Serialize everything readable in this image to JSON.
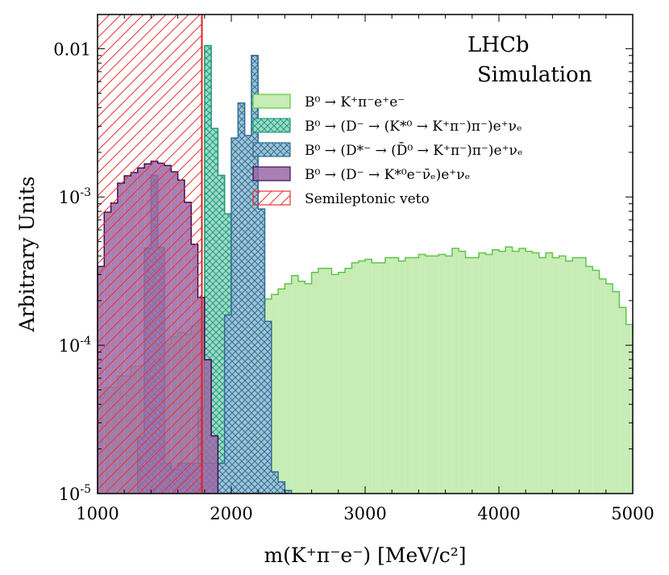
{
  "colors": {
    "signal_fill": "#c7ecb5",
    "signal_edge": "#5ec649",
    "dmunu_fill": "#9fd8c8",
    "dmunu_edge": "#1e9c79",
    "dstar_fill": "#9fc3d5",
    "dstar_edge": "#2f6e94",
    "dsl_fill": "#9b69a6",
    "dsl_edge": "#3a0e55",
    "veto_edge": "#ee3030",
    "veto_line": "#e21d1d"
  },
  "chart_data": {
    "type": "histogram",
    "brand": {
      "line1": "LHCb",
      "line2": "Simulation"
    },
    "xlabel": "m(K⁺π⁻e⁻) [MeV/c²]",
    "ylabel": "Arbitrary Units",
    "xlim": [
      1000,
      5000
    ],
    "ylim": [
      1e-05,
      0.017
    ],
    "yscale": "log",
    "bin_width": 50,
    "x_ticks": [
      1000,
      2000,
      3000,
      4000,
      5000
    ],
    "x_tick_labels": [
      "1000",
      "2000",
      "3000",
      "4000",
      "5000"
    ],
    "y_ticks": [
      0.01,
      0.001,
      0.0001,
      1e-05
    ],
    "y_tick_labels": [
      {
        "base": "0.01",
        "exp": ""
      },
      {
        "base": "10",
        "exp": "-3"
      },
      {
        "base": "10",
        "exp": "-4"
      },
      {
        "base": "10",
        "exp": "-5"
      }
    ],
    "veto": {
      "label": "Semileptonic veto",
      "x_min": 1000,
      "x_max": 1780
    },
    "series": [
      {
        "name": "B⁰ → K⁺π⁻e⁺e⁻",
        "style": "signal",
        "x_start": 1000,
        "values": [
          4.42e-05,
          5.2e-05,
          5.2e-05,
          6.2e-05,
          6.2e-05,
          7.2e-05,
          7.28e-05,
          9.4e-05,
          8.4e-05,
          0.000104,
          0.000102,
          0.000114,
          0.000122,
          0.000118,
          0.000135,
          0.000145,
          0.000145,
          0.000124,
          0.000145,
          0.000124,
          0.000145,
          0.000165,
          0.00017,
          0.00018,
          0.00019,
          0.000205,
          0.00022,
          0.00024,
          0.00026,
          0.000295,
          0.00027,
          0.00026,
          0.00031,
          0.00033,
          0.00033,
          0.0003,
          0.00031,
          0.00033,
          0.00036,
          0.00037,
          0.00038,
          0.00036,
          0.00036,
          0.00039,
          0.00039,
          0.00037,
          0.00039,
          0.00039,
          0.00041,
          0.0004,
          0.0004,
          0.00041,
          0.0004,
          0.00045,
          0.00043,
          0.00039,
          0.00039,
          0.00042,
          0.00041,
          0.00044,
          0.00043,
          0.00046,
          0.00043,
          0.00045,
          0.00043,
          0.00042,
          0.00039,
          0.00042,
          0.00039,
          0.0004,
          0.00037,
          0.00039,
          0.00039,
          0.00034,
          0.00032,
          0.00028,
          0.00026,
          0.00023,
          0.00018,
          0.000138,
          0.000122,
          0.000106,
          7.2e-05,
          5.2e-05
        ]
      },
      {
        "name": "B⁰ → (D⁻ → (K*⁰ → K⁺π⁻)π⁻)e⁺νₑ",
        "style": "dmunu",
        "x_start": 1750,
        "values": [
          3.8e-05,
          0.0105,
          0.0029,
          0.0014,
          0.00077,
          0.00014,
          9.8e-05,
          3.4e-05,
          1.1e-05
        ]
      },
      {
        "name": "B⁰ → (D*⁻ → (D̄⁰ → K⁺π⁻)π⁻)e⁺νₑ",
        "style": "dstar",
        "x_start": 1300,
        "values": [
          2.4e-05,
          0.00045,
          0.0014,
          0.000455,
          1.6e-05,
          1.45e-05,
          1.6e-05,
          1.6e-05,
          1.6e-05,
          1.6e-05,
          1.6e-05,
          1.6e-05,
          1.6e-05,
          0.00016,
          0.0025,
          0.0043,
          0.0026,
          0.009,
          0.00083,
          0.000145,
          1.4e-05,
          1.2e-05,
          1.05e-05
        ]
      },
      {
        "name": "B⁰ → (D⁻ → K*⁰e⁻ν̄ₑ)e⁺νₑ",
        "style": "dsl",
        "x_start": 1000,
        "values": [
          0.00034,
          0.00079,
          0.00091,
          0.00124,
          0.00139,
          0.00146,
          0.00157,
          0.00167,
          0.00174,
          0.00169,
          0.00163,
          0.00148,
          0.0013,
          0.00092,
          0.00048,
          0.00021,
          8e-05,
          2.45e-05,
          1e-05,
          1e-05,
          1e-05,
          1e-05,
          1e-05,
          1e-05,
          1e-05,
          1e-05
        ]
      }
    ],
    "legend": [
      {
        "label": "B⁰ → K⁺π⁻e⁺e⁻",
        "style": "signal"
      },
      {
        "label": "B⁰ → (D⁻ → (K*⁰ → K⁺π⁻)π⁻)e⁺νₑ",
        "style": "dmunu"
      },
      {
        "label": "B⁰ → (D*⁻ → (D̄⁰ → K⁺π⁻)π⁻)e⁺νₑ",
        "style": "dstar"
      },
      {
        "label": "B⁰ → (D⁻ → K*⁰e⁻ν̄ₑ)e⁺νₑ",
        "style": "dsl"
      },
      {
        "label": "Semileptonic veto",
        "style": "veto"
      }
    ],
    "legend_position": "upper-right"
  }
}
